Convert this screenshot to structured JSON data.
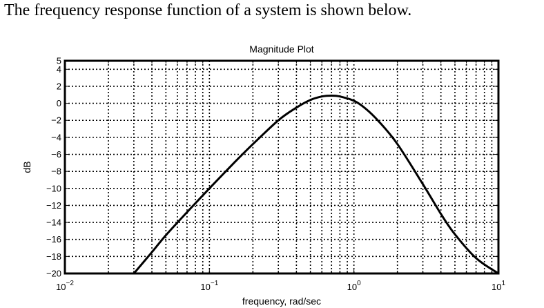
{
  "question_text": "The frequency response function of a system is shown below.",
  "chart_data": {
    "type": "line",
    "title": "Magnitude Plot",
    "xlabel": "frequency, rad/sec",
    "ylabel": "dB",
    "xscale": "log",
    "xlim": [
      0.01,
      10
    ],
    "ylim": [
      -20,
      5
    ],
    "grid": true,
    "legend": "none",
    "x_ticks": [
      {
        "value": 0.01,
        "base": "10",
        "exp": "−2"
      },
      {
        "value": 0.1,
        "base": "10",
        "exp": "−1"
      },
      {
        "value": 1,
        "base": "10",
        "exp": "0"
      },
      {
        "value": 10,
        "base": "10",
        "exp": "1"
      }
    ],
    "y_ticks": [
      {
        "value": 5,
        "label": "5"
      },
      {
        "value": 4,
        "label": "4"
      },
      {
        "value": 2,
        "label": "2"
      },
      {
        "value": 0,
        "label": "0"
      },
      {
        "value": -2,
        "label": "−2"
      },
      {
        "value": -4,
        "label": "−4"
      },
      {
        "value": -6,
        "label": "−6"
      },
      {
        "value": -8,
        "label": "−8"
      },
      {
        "value": -10,
        "label": "−10"
      },
      {
        "value": -12,
        "label": "−12"
      },
      {
        "value": -14,
        "label": "−14"
      },
      {
        "value": -16,
        "label": "−16"
      },
      {
        "value": -18,
        "label": "−18"
      },
      {
        "value": -20,
        "label": "−20"
      }
    ],
    "series": [
      {
        "color": "#000000",
        "x": [
          0.03,
          0.04,
          0.05,
          0.07,
          0.1,
          0.15,
          0.2,
          0.3,
          0.4,
          0.5,
          0.6,
          0.7,
          0.8,
          1.0,
          1.2,
          1.5,
          2.0,
          3.0,
          4.0,
          5.0,
          7.0,
          10.0
        ],
        "y": [
          -20.0,
          -17.5,
          -15.5,
          -12.8,
          -10.0,
          -6.9,
          -4.8,
          -2.0,
          -0.5,
          0.4,
          0.8,
          0.9,
          0.8,
          0.3,
          -0.6,
          -2.2,
          -4.8,
          -9.5,
          -13.0,
          -15.4,
          -18.2,
          -20.0
        ]
      }
    ]
  }
}
